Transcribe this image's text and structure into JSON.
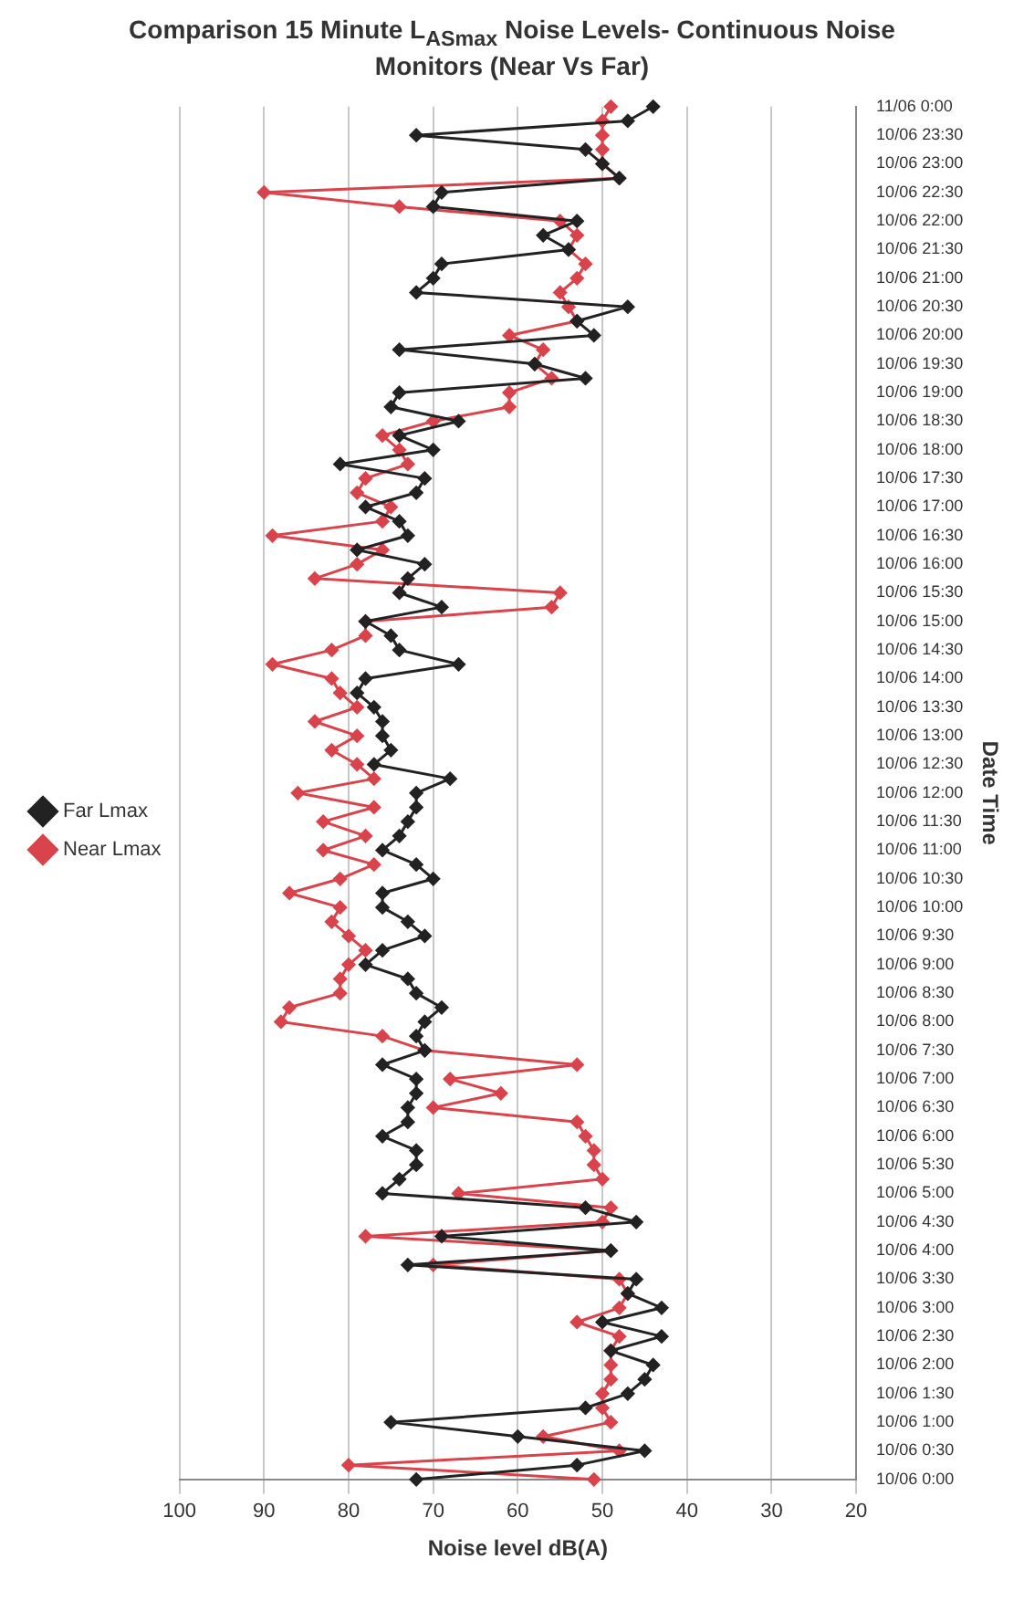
{
  "chart_data": {
    "type": "line",
    "orientation": "horizontal",
    "title": "Comparison 15 Minute L$_{ASmax}$ Noise Levels- Continuous Noise Monitors (Near Vs Far)",
    "xlabel": "Noise level dB(A)",
    "ylabel": "Date Time",
    "categories": [
      "11/06 0:00",
      null,
      "10/06 23:30",
      null,
      "10/06 23:00",
      null,
      "10/06 22:30",
      null,
      "10/06 22:00",
      null,
      "10/06 21:30",
      null,
      "10/06 21:00",
      null,
      "10/06 20:30",
      null,
      "10/06 20:00",
      null,
      "10/06 19:30",
      null,
      "10/06 19:00",
      null,
      "10/06 18:30",
      null,
      "10/06 18:00",
      null,
      "10/06 17:30",
      null,
      "10/06 17:00",
      null,
      "10/06 16:30",
      null,
      "10/06 16:00",
      null,
      "10/06 15:30",
      null,
      "10/06 15:00",
      null,
      "10/06 14:30",
      null,
      "10/06 14:00",
      null,
      "10/06 13:30",
      null,
      "10/06 13:00",
      null,
      "10/06 12:30",
      null,
      "10/06 12:00",
      null,
      "10/06 11:30",
      null,
      "10/06 11:00",
      null,
      "10/06 10:30",
      null,
      "10/06 10:00",
      null,
      "10/06 9:30",
      null,
      "10/06 9:00",
      null,
      "10/06 8:30",
      null,
      "10/06 8:00",
      null,
      "10/06 7:30",
      null,
      "10/06 7:00",
      null,
      "10/06 6:30",
      null,
      "10/06 6:00",
      null,
      "10/06 5:30",
      null,
      "10/06 5:00",
      null,
      "10/06 4:30",
      null,
      "10/06 4:00",
      null,
      "10/06 3:30",
      null,
      "10/06 3:00",
      null,
      "10/06 2:30",
      null,
      "10/06 2:00",
      null,
      "10/06 1:30",
      null,
      "10/06 1:00",
      null,
      "10/06 0:30",
      null,
      "10/06 0:00"
    ],
    "series": [
      {
        "name": "Far Lmax",
        "color": "#222222",
        "values": [
          44,
          47,
          72,
          52,
          50,
          48,
          69,
          70,
          53,
          57,
          54,
          69,
          70,
          72,
          47,
          53,
          51,
          74,
          58,
          52,
          74,
          75,
          67,
          74,
          70,
          81,
          71,
          72,
          78,
          74,
          73,
          79,
          71,
          73,
          74,
          69,
          78,
          75,
          74,
          67,
          78,
          79,
          77,
          76,
          76,
          75,
          77,
          68,
          72,
          72,
          73,
          74,
          76,
          72,
          70,
          76,
          76,
          73,
          71,
          76,
          78,
          73,
          72,
          69,
          71,
          72,
          71,
          76,
          72,
          72,
          73,
          73,
          76,
          72,
          72,
          74,
          76,
          52,
          46,
          69,
          49,
          73,
          46,
          47,
          43,
          50,
          43,
          49,
          44,
          45,
          47,
          52,
          75,
          60,
          45,
          53,
          72
        ]
      },
      {
        "name": "Near Lmax",
        "color": "#d9434b",
        "values": [
          49,
          50,
          50,
          50,
          50,
          48,
          90,
          74,
          55,
          53,
          54,
          52,
          53,
          55,
          54,
          53,
          61,
          57,
          58,
          56,
          61,
          61,
          70,
          76,
          74,
          73,
          78,
          79,
          75,
          76,
          89,
          76,
          79,
          84,
          55,
          56,
          78,
          78,
          82,
          89,
          82,
          81,
          79,
          84,
          79,
          82,
          79,
          77,
          86,
          77,
          83,
          78,
          83,
          77,
          81,
          87,
          81,
          82,
          80,
          78,
          80,
          81,
          81,
          87,
          88,
          76,
          71,
          53,
          68,
          62,
          70,
          53,
          52,
          51,
          51,
          50,
          67,
          49,
          50,
          78,
          49,
          70,
          48,
          47,
          48,
          53,
          48,
          49,
          49,
          49,
          50,
          50,
          49,
          57,
          48,
          80,
          51
        ]
      }
    ],
    "xlim": [
      100,
      20
    ],
    "xticks": [
      100,
      90,
      80,
      70,
      60,
      50,
      40,
      30,
      20
    ],
    "grid": "x",
    "legend": "left",
    "marker": "diamond",
    "line_style": "solid"
  }
}
